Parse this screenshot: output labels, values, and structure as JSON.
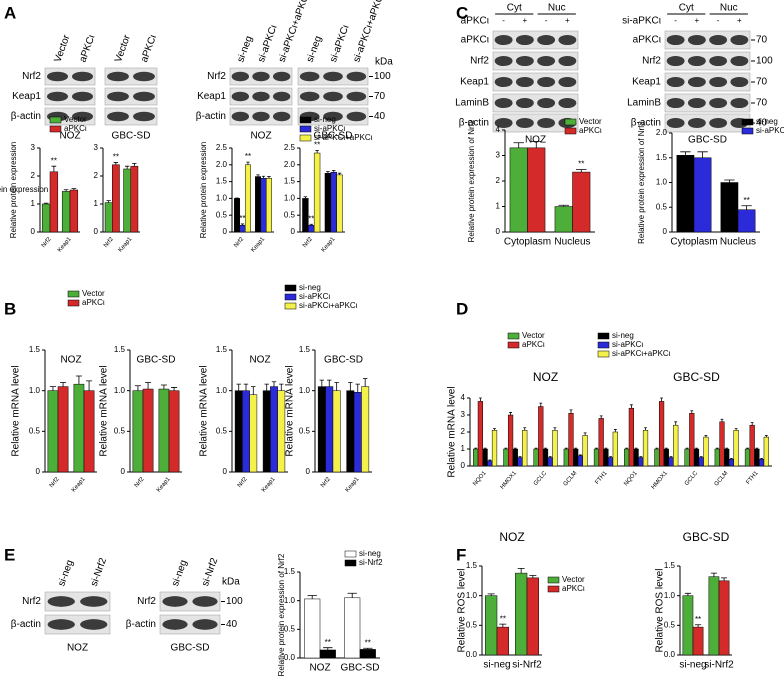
{
  "panels": [
    "A",
    "B",
    "C",
    "D",
    "E",
    "F"
  ],
  "blots": [
    {
      "cell_line": "NOZ",
      "lanes": [
        "Vector",
        "aPKCι"
      ],
      "rows": [
        "Nrf2",
        "Keap1",
        "β-actin"
      ]
    },
    {
      "cell_line": "GBC-SD",
      "lanes": [
        "Vector",
        "aPKCι"
      ]
    },
    {
      "cell_line": "NOZ",
      "lanes": [
        "si-neg",
        "si-aPKCι",
        "si-aPKCι+aPKCι"
      ],
      "rows": [
        "Nrf2",
        "Keap1",
        "β-actin"
      ]
    },
    {
      "cell_line": "GBC-SD",
      "lanes": [
        "si-neg",
        "si-aPKCι",
        "si-aPKCι+aPKCι"
      ],
      "unit": "kDa",
      "markers": [
        "100",
        "70",
        "40"
      ]
    },
    {
      "cell_line": "NOZ",
      "treatment": "aPKCι",
      "fractions": [
        "Cyt",
        "Nuc"
      ],
      "lanes": [
        "-",
        "+",
        "-",
        "+"
      ],
      "rows": [
        "aPKCι",
        "Nrf2",
        "Keap1",
        "LaminB",
        "β-actin"
      ]
    },
    {
      "cell_line": "GBC-SD",
      "treatment": "si-aPKCι",
      "fractions": [
        "Cyt",
        "Nuc"
      ],
      "lanes": [
        "-",
        "+",
        "-",
        "+"
      ],
      "rows": [
        "aPKCι",
        "Nrf2",
        "Keap1",
        "LaminB",
        "β-actin"
      ],
      "markers": [
        "70",
        "100",
        "70",
        "70",
        "40"
      ]
    },
    {
      "cell_line": "NOZ",
      "lanes": [
        "si-neg",
        "si-Nrf2"
      ],
      "rows": [
        "Nrf2",
        "β-actin"
      ]
    },
    {
      "cell_line": "GBC-SD",
      "lanes": [
        "si-neg",
        "si-Nrf2"
      ],
      "rows": [
        "Nrf2",
        "β-actin"
      ],
      "unit": "kDa",
      "markers": [
        "100",
        "40"
      ]
    }
  ],
  "chart_data": [
    {
      "type": "bar",
      "categories": [
        "Nrf2",
        "Keap1"
      ],
      "ylim": [
        0,
        3
      ],
      "yticks": [
        0,
        1,
        2,
        3
      ],
      "ylabel": "Relative protein expression",
      "series": [
        {
          "name": "Vector",
          "color": "#4dae3a",
          "values": [
            1.0,
            1.45
          ],
          "errors": [
            0.03,
            0.06
          ]
        },
        {
          "name": "aPKCι",
          "color": "#d42a2a",
          "values": [
            2.15,
            1.5
          ],
          "errors": [
            0.2,
            0.05
          ],
          "significance": [
            "**",
            null
          ]
        }
      ]
    },
    {
      "type": "bar",
      "categories": [
        "Nrf2",
        "Keap1"
      ],
      "ylim": [
        0,
        3
      ],
      "yticks": [
        0,
        1,
        2,
        3
      ],
      "series": [
        {
          "color": "#4dae3a",
          "values": [
            1.05,
            2.25
          ],
          "errors": [
            0.07,
            0.1
          ]
        },
        {
          "color": "#d42a2a",
          "values": [
            2.4,
            2.35
          ],
          "errors": [
            0.08,
            0.1
          ],
          "significance": [
            "**",
            null
          ]
        }
      ]
    },
    {
      "type": "bar",
      "categories": [
        "Nrf2",
        "Keap1"
      ],
      "ylim": [
        0,
        2.5
      ],
      "yticks": [
        0,
        0.5,
        {
          "value": 1,
          "label": "1.0"
        },
        1.5,
        {
          "value": 2,
          "label": "2.0"
        },
        2.5
      ],
      "ylabel": "Relative protein expression",
      "series": [
        {
          "name": "si-neg",
          "color": "#000000",
          "values": [
            1.0,
            1.65
          ],
          "errors": [
            0.01,
            0.05
          ]
        },
        {
          "name": "si-aPKCι",
          "color": "#2b2bd9",
          "values": [
            0.2,
            1.6
          ],
          "errors": [
            0.04,
            0.06
          ],
          "significance": [
            "**",
            null
          ]
        },
        {
          "name": "si-aPKCι+aPKCι",
          "color": "#f4f14a",
          "values": [
            2.0,
            1.6
          ],
          "errors": [
            0.08,
            0.05
          ],
          "significance": [
            "**",
            null
          ]
        }
      ]
    },
    {
      "type": "bar",
      "categories": [
        "Nrf2",
        "Keap1"
      ],
      "ylim": [
        0,
        2.5
      ],
      "yticks": [
        0,
        0.5,
        {
          "value": 1,
          "label": "1.0"
        },
        1.5,
        {
          "value": 2,
          "label": "2.0"
        },
        2.5
      ],
      "ylabel": "Relative protein expression",
      "series": [
        {
          "color": "#000000",
          "values": [
            1.0,
            1.75
          ],
          "errors": [
            0.05,
            0.05
          ]
        },
        {
          "color": "#2b2bd9",
          "values": [
            0.2,
            1.78
          ],
          "errors": [
            0.03,
            0.05
          ],
          "significance": [
            "**",
            null
          ]
        },
        {
          "color": "#f4f14a",
          "values": [
            2.35,
            1.7
          ],
          "errors": [
            0.08,
            0.05
          ],
          "significance": [
            "**",
            null
          ]
        }
      ]
    },
    {
      "type": "bar",
      "categories": [
        "Cytoplasm",
        "Nucleus"
      ],
      "ylim": [
        0,
        4
      ],
      "yticks": [
        0,
        1,
        2,
        3,
        4
      ],
      "ylabel": "Relative protein expression of Nrf2",
      "series": [
        {
          "name": "Vector",
          "color": "#4dae3a",
          "values": [
            3.3,
            1.0
          ],
          "errors": [
            0.2,
            0.05
          ]
        },
        {
          "name": "aPKCι",
          "color": "#d42a2a",
          "values": [
            3.3,
            2.35
          ],
          "errors": [
            0.25,
            0.1
          ],
          "significance": [
            null,
            "**"
          ]
        }
      ]
    },
    {
      "type": "bar",
      "categories": [
        "Cytoplasm",
        "Nucleus"
      ],
      "ylim": [
        0,
        2
      ],
      "yticks": [
        0,
        0.5,
        {
          "value": 1,
          "label": "1.0"
        },
        1.5,
        {
          "value": 2,
          "label": "2.0"
        }
      ],
      "ylabel": "Relative protein expression of Nrf2",
      "series": [
        {
          "name": "si-neg",
          "color": "#000000",
          "values": [
            1.55,
            1.0
          ],
          "errors": [
            0.07,
            0.05
          ]
        },
        {
          "name": "si-aPKCι",
          "color": "#2b2bd9",
          "values": [
            1.5,
            0.45
          ],
          "errors": [
            0.12,
            0.08
          ],
          "significance": [
            null,
            "**"
          ]
        }
      ]
    },
    {
      "type": "bar",
      "title": "NOZ",
      "categories": [
        "Nrf2",
        "Keap1"
      ],
      "ylim": [
        0,
        1.5
      ],
      "yticks": [
        0,
        0.5,
        {
          "value": 1,
          "label": "1.0"
        },
        1.5
      ],
      "ylabel": "Relative mRNA level",
      "series": [
        {
          "name": "Vector",
          "color": "#4dae3a",
          "values": [
            1.0,
            1.08
          ],
          "errors": [
            0.05,
            0.1
          ]
        },
        {
          "name": "aPKCι",
          "color": "#d42a2a",
          "values": [
            1.05,
            1.0
          ],
          "errors": [
            0.05,
            0.12
          ]
        }
      ]
    },
    {
      "type": "bar",
      "title": "GBC-SD",
      "categories": [
        "Nrf2",
        "Keap1"
      ],
      "ylim": [
        0,
        1.5
      ],
      "yticks": [
        0,
        0.5,
        {
          "value": 1,
          "label": "1.0"
        },
        1.5
      ],
      "ylabel": "Relative mRNA level",
      "series": [
        {
          "color": "#4dae3a",
          "values": [
            1.0,
            1.02
          ],
          "errors": [
            0.06,
            0.05
          ]
        },
        {
          "color": "#d42a2a",
          "values": [
            1.02,
            1.0
          ],
          "errors": [
            0.08,
            0.04
          ]
        }
      ]
    },
    {
      "type": "bar",
      "title": "NOZ",
      "categories": [
        "Nrf2",
        "Keap1"
      ],
      "ylim": [
        0,
        1.5
      ],
      "yticks": [
        0,
        0.5,
        {
          "value": 1,
          "label": "1.0"
        },
        1.5
      ],
      "ylabel": "Relative mRNA level",
      "series": [
        {
          "name": "si-neg",
          "color": "#000000",
          "values": [
            1.0,
            1.0
          ],
          "errors": [
            0.08,
            0.08
          ]
        },
        {
          "name": "si-aPKCι",
          "color": "#2b2bd9",
          "values": [
            1.0,
            1.05
          ],
          "errors": [
            0.08,
            0.06
          ]
        },
        {
          "name": "si-aPKCι+aPKCι",
          "color": "#f4f14a",
          "values": [
            0.95,
            1.0
          ],
          "errors": [
            0.1,
            0.08
          ]
        }
      ]
    },
    {
      "type": "bar",
      "title": "GBC-SD",
      "categories": [
        "Nrf2",
        "Keap1"
      ],
      "ylim": [
        0,
        1.5
      ],
      "yticks": [
        0,
        0.5,
        {
          "value": 1,
          "label": "1.0"
        },
        1.5
      ],
      "ylabel": "Relative mRNA level",
      "series": [
        {
          "color": "#000000",
          "values": [
            1.05,
            1.0
          ],
          "errors": [
            0.08,
            0.1
          ]
        },
        {
          "color": "#2b2bd9",
          "values": [
            1.05,
            0.98
          ],
          "errors": [
            0.08,
            0.1
          ]
        },
        {
          "color": "#f4f14a",
          "values": [
            1.0,
            1.05
          ],
          "errors": [
            0.1,
            0.1
          ]
        }
      ]
    },
    {
      "type": "bar",
      "category_groups": [
        "NOZ",
        "GBC-SD"
      ],
      "categories": [
        "NQO1",
        "HMOX1",
        "GCLC",
        "GCLM",
        "FTH1",
        "NQO1",
        "HMOX1",
        "GCLC",
        "GCLM",
        "FTH1"
      ],
      "ylim": [
        0,
        4
      ],
      "yticks": [
        0,
        1,
        2,
        3,
        4
      ],
      "ylabel": "Relative mRNA level",
      "series": [
        {
          "name": "Vector",
          "color": "#4dae3a",
          "values": [
            1,
            1,
            1,
            1,
            1,
            1,
            1,
            1,
            1,
            1
          ],
          "errors": [
            0.05,
            0.05,
            0.05,
            0.05,
            0.05,
            0.05,
            0.05,
            0.05,
            0.05,
            0.05
          ]
        },
        {
          "name": "aPKCι",
          "color": "#d42a2a",
          "values": [
            3.8,
            3.0,
            3.5,
            3.1,
            2.8,
            3.4,
            3.8,
            3.1,
            2.6,
            2.4
          ],
          "errors": [
            0.2,
            0.15,
            0.2,
            0.2,
            0.15,
            0.2,
            0.2,
            0.15,
            0.15,
            0.15
          ]
        },
        {
          "name": "si-neg",
          "color": "#000000",
          "values": [
            1,
            1,
            1,
            1,
            1,
            1,
            1,
            1,
            1,
            1
          ],
          "errors": [
            0.05,
            0.05,
            0.05,
            0.05,
            0.05,
            0.05,
            0.05,
            0.05,
            0.05,
            0.05
          ]
        },
        {
          "name": "si-aPKCι",
          "color": "#2b2bd9",
          "values": [
            0.3,
            0.5,
            0.5,
            0.6,
            0.5,
            0.5,
            0.5,
            0.5,
            0.4,
            0.4
          ],
          "errors": [
            0.05,
            0.05,
            0.05,
            0.05,
            0.05,
            0.05,
            0.05,
            0.05,
            0.05,
            0.05
          ]
        },
        {
          "name": "si-aPKCι+aPKCι",
          "color": "#f4f14a",
          "values": [
            2.1,
            2.1,
            2.1,
            1.8,
            2.0,
            2.1,
            2.4,
            1.7,
            2.1,
            1.7
          ],
          "errors": [
            0.1,
            0.15,
            0.15,
            0.15,
            0.15,
            0.15,
            0.2,
            0.1,
            0.1,
            0.1
          ]
        }
      ]
    },
    {
      "type": "bar",
      "categories": [
        "NOZ",
        "GBC-SD"
      ],
      "ylim": [
        0,
        1.5
      ],
      "yticks": [
        {
          "value": 0,
          "label": "0.0"
        },
        0.5,
        {
          "value": 1,
          "label": "1.0"
        },
        1.5
      ],
      "ylabel": "Relative protein expression of Nrf2",
      "series": [
        {
          "name": "si-neg",
          "color": "#ffffff",
          "values": [
            1.03,
            1.05
          ],
          "errors": [
            0.06,
            0.08
          ]
        },
        {
          "name": "si-Nrf2",
          "color": "#000000",
          "values": [
            0.14,
            0.15
          ],
          "errors": [
            0.04,
            0.02
          ],
          "significance": [
            "**",
            "**"
          ]
        }
      ]
    },
    {
      "type": "bar",
      "title": "NOZ",
      "categories": [
        "si-neg",
        "si-Nrf2"
      ],
      "ylim": [
        0,
        1.5
      ],
      "yticks": [
        {
          "value": 0,
          "label": "0.0"
        },
        0.5,
        {
          "value": 1,
          "label": "1.0"
        },
        1.5
      ],
      "ylabel": "Relative ROS level",
      "series": [
        {
          "name": "Vector",
          "color": "#4dae3a",
          "values": [
            1.0,
            1.38
          ],
          "errors": [
            0.03,
            0.08
          ]
        },
        {
          "name": "aPKCι",
          "color": "#d42a2a",
          "values": [
            0.47,
            1.3
          ],
          "errors": [
            0.05,
            0.04
          ],
          "significance": [
            "**",
            null
          ]
        }
      ]
    },
    {
      "type": "bar",
      "title": "GBC-SD",
      "categories": [
        "si-neg",
        "si-Nrf2"
      ],
      "ylim": [
        0,
        1.5
      ],
      "yticks": [
        {
          "value": 0,
          "label": "0.0"
        },
        0.5,
        {
          "value": 1,
          "label": "1.0"
        },
        1.5
      ],
      "ylabel": "Relative ROS level",
      "series": [
        {
          "color": "#4dae3a",
          "values": [
            1.0,
            1.32
          ],
          "errors": [
            0.04,
            0.06
          ]
        },
        {
          "color": "#d42a2a",
          "values": [
            0.47,
            1.25
          ],
          "errors": [
            0.04,
            0.05
          ],
          "significance": [
            "**",
            null
          ]
        }
      ]
    }
  ]
}
